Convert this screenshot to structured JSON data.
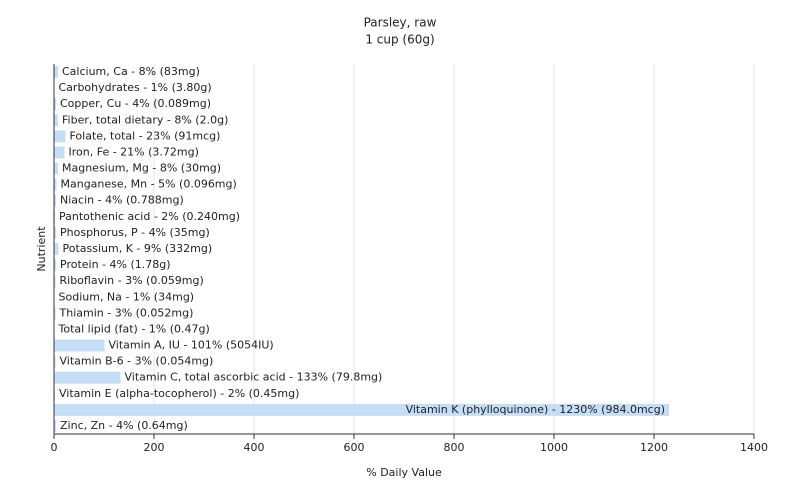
{
  "chart_data": {
    "type": "bar",
    "orientation": "horizontal",
    "title": "Parsley, raw",
    "subtitle": "1 cup (60g)",
    "x_label": "% Daily Value",
    "y_label": "Nutrient",
    "values": [
      8,
      1,
      4,
      8,
      23,
      21,
      8,
      5,
      4,
      2,
      4,
      9,
      4,
      3,
      1,
      3,
      1,
      101,
      3,
      133,
      2,
      1230,
      4
    ],
    "value_labels": [
      "Calcium, Ca - 8% (83mg)",
      "Carbohydrates - 1% (3.80g)",
      "Copper, Cu - 4% (0.089mg)",
      "Fiber, total dietary - 8% (2.0g)",
      "Folate, total - 23% (91mcg)",
      "Iron, Fe - 21% (3.72mg)",
      "Magnesium, Mg - 8% (30mg)",
      "Manganese, Mn - 5% (0.096mg)",
      "Niacin - 4% (0.788mg)",
      "Pantothenic acid - 2% (0.240mg)",
      "Phosphorus, P - 4% (35mg)",
      "Potassium, K - 9% (332mg)",
      "Protein - 4% (1.78g)",
      "Riboflavin - 3% (0.059mg)",
      "Sodium, Na - 1% (34mg)",
      "Thiamin - 3% (0.052mg)",
      "Total lipid (fat) - 1% (0.47g)",
      "Vitamin A, IU - 101% (5054IU)",
      "Vitamin B-6 - 3% (0.054mg)",
      "Vitamin C, total ascorbic acid - 133% (79.8mg)",
      "Vitamin E (alpha-tocopherol) - 2% (0.45mg)",
      "Vitamin K (phylloquinone) - 1230% (984.0mcg)",
      "Zinc, Zn - 4% (0.64mg)"
    ],
    "color": "#c6ddf5",
    "xlim": [
      0,
      1400
    ],
    "xticks": [
      0,
      200,
      400,
      600,
      800,
      1000,
      1200,
      1400
    ],
    "grid": true
  }
}
